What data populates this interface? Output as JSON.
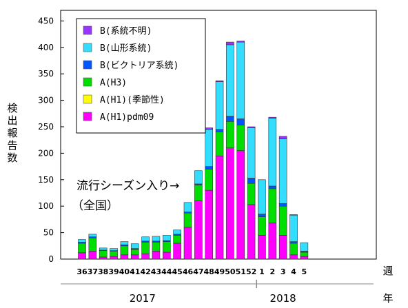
{
  "chart_data": {
    "type": "bar",
    "stacked": true,
    "ylabel": "検出報告数",
    "xlabel": "週",
    "year_axis_label": "年",
    "ylim": [
      0,
      470
    ],
    "yticks": [
      0,
      50,
      100,
      150,
      200,
      250,
      300,
      350,
      400,
      450
    ],
    "categories": [
      "36",
      "37",
      "38",
      "39",
      "40",
      "41",
      "42",
      "43",
      "44",
      "45",
      "46",
      "47",
      "48",
      "49",
      "50",
      "51",
      "52",
      "1",
      "2",
      "3",
      "4",
      "5"
    ],
    "years": [
      {
        "label": "2017",
        "from": "36",
        "to": "52"
      },
      {
        "label": "2018",
        "from": "1",
        "to": "5"
      }
    ],
    "annotation": {
      "line1": "流行シーズン入り→",
      "line2": "（全国）",
      "at_week": "47"
    },
    "legend_position": "top-left",
    "series": [
      {
        "name": "A(H1)pdm09",
        "color": "#ff00ff",
        "values": [
          12,
          15,
          4,
          5,
          8,
          8,
          10,
          15,
          13,
          30,
          60,
          110,
          130,
          195,
          210,
          205,
          103,
          45,
          68,
          45,
          8,
          5
        ]
      },
      {
        "name": "A(H1)(季節性)",
        "color": "#ffff00",
        "values": [
          0,
          0,
          0,
          0,
          0,
          0,
          0,
          0,
          0,
          0,
          0,
          0,
          0,
          0,
          0,
          0,
          0,
          0,
          0,
          0,
          0,
          0
        ]
      },
      {
        "name": "A(H3)",
        "color": "#00dd00",
        "values": [
          18,
          25,
          12,
          10,
          17,
          10,
          22,
          17,
          20,
          15,
          27,
          30,
          40,
          45,
          50,
          48,
          40,
          35,
          65,
          55,
          22,
          8
        ]
      },
      {
        "name": "B(ビクトリア系統)",
        "color": "#0055ff",
        "values": [
          2,
          2,
          1,
          1,
          2,
          2,
          2,
          2,
          2,
          2,
          2,
          2,
          5,
          5,
          10,
          12,
          10,
          5,
          5,
          5,
          3,
          2
        ]
      },
      {
        "name": "B(山形系統)",
        "color": "#33ddff",
        "values": [
          5,
          5,
          4,
          4,
          6,
          9,
          8,
          9,
          10,
          8,
          18,
          25,
          70,
          90,
          135,
          145,
          95,
          65,
          128,
          122,
          50,
          16
        ]
      },
      {
        "name": "B(系統不明)",
        "color": "#9933ff",
        "values": [
          0,
          0,
          0,
          0,
          0,
          0,
          0,
          0,
          0,
          0,
          0,
          0,
          3,
          2,
          5,
          2,
          2,
          0,
          2,
          5,
          1,
          0
        ]
      }
    ]
  }
}
